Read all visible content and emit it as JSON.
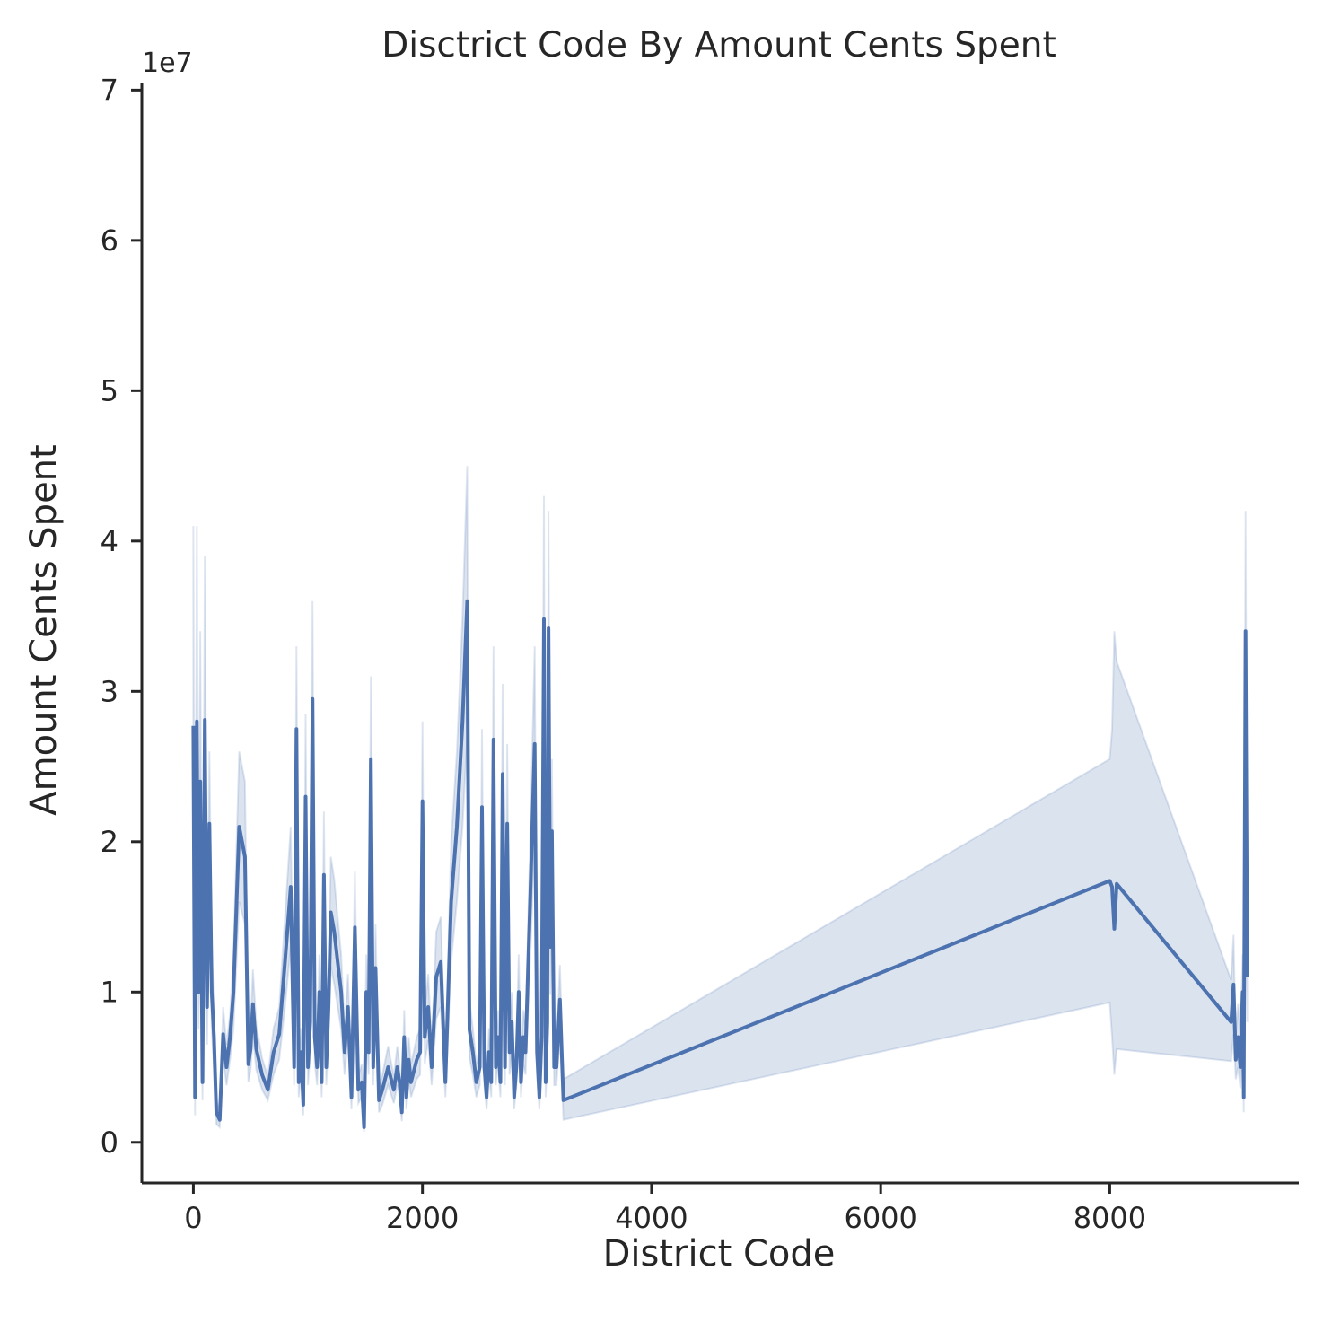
{
  "chart_data": {
    "type": "line",
    "title": "Disctrict Code By Amount Cents Spent",
    "xlabel": "District Code",
    "ylabel": "Amount Cents Spent",
    "y_offset_label": "1e7",
    "xlim": [
      -450,
      9650
    ],
    "ylim": [
      -0.27,
      7.05
    ],
    "xticks": [
      0,
      2000,
      4000,
      6000,
      8000
    ],
    "xtick_labels": [
      "0",
      "2000",
      "4000",
      "6000",
      "8000"
    ],
    "yticks": [
      0,
      1,
      2,
      3,
      4,
      5,
      6,
      7
    ],
    "ytick_labels": [
      "0",
      "1",
      "2",
      "3",
      "4",
      "5",
      "6",
      "7"
    ],
    "grid": false,
    "colors": {
      "line": "#4c72b0",
      "band": "#4c72b0",
      "axis": "#262626"
    },
    "series": [
      {
        "x": [
          0,
          15,
          30,
          45,
          60,
          80,
          100,
          120,
          140,
          160,
          180,
          200,
          230,
          260,
          290,
          320,
          350,
          400,
          450,
          480,
          500,
          520,
          550,
          600,
          650,
          700,
          750,
          800,
          850,
          880,
          900,
          920,
          940,
          960,
          980,
          1000,
          1020,
          1040,
          1060,
          1080,
          1100,
          1120,
          1140,
          1160,
          1180,
          1200,
          1230,
          1260,
          1290,
          1320,
          1350,
          1380,
          1410,
          1440,
          1470,
          1490,
          1510,
          1530,
          1550,
          1570,
          1590,
          1620,
          1650,
          1700,
          1750,
          1780,
          1800,
          1820,
          1840,
          1860,
          1880,
          1900,
          1950,
          1980,
          2000,
          2020,
          2050,
          2080,
          2120,
          2160,
          2200,
          2250,
          2300,
          2350,
          2390,
          2410,
          2440,
          2470,
          2500,
          2520,
          2540,
          2560,
          2580,
          2600,
          2620,
          2640,
          2660,
          2680,
          2700,
          2720,
          2740,
          2760,
          2780,
          2800,
          2820,
          2840,
          2860,
          2880,
          2900,
          2940,
          2980,
          3000,
          3020,
          3040,
          3060,
          3075,
          3090,
          3100,
          3115,
          3130,
          3150,
          3170,
          3200,
          3230,
          8000,
          8020,
          8040,
          8060,
          9060,
          9080,
          9100,
          9120,
          9140,
          9160,
          9170,
          9185,
          9200
        ],
        "y": [
          2.77,
          0.3,
          2.8,
          1.0,
          2.4,
          0.4,
          2.81,
          0.9,
          2.12,
          1.0,
          0.7,
          0.2,
          0.15,
          0.72,
          0.5,
          0.7,
          1.0,
          2.1,
          1.9,
          0.52,
          0.62,
          0.92,
          0.62,
          0.45,
          0.35,
          0.6,
          0.72,
          1.2,
          1.7,
          0.5,
          2.75,
          0.4,
          0.6,
          0.25,
          2.3,
          0.5,
          0.8,
          2.95,
          0.7,
          0.5,
          1.0,
          0.4,
          1.78,
          0.5,
          0.9,
          1.53,
          1.4,
          1.2,
          1.0,
          0.6,
          0.9,
          0.3,
          1.43,
          0.35,
          0.4,
          0.1,
          1.0,
          0.6,
          2.55,
          0.5,
          1.16,
          0.28,
          0.35,
          0.5,
          0.35,
          0.5,
          0.4,
          0.2,
          0.7,
          0.3,
          0.55,
          0.4,
          0.55,
          0.6,
          2.27,
          0.7,
          0.9,
          0.5,
          1.1,
          1.2,
          0.4,
          1.6,
          2.1,
          2.8,
          3.6,
          0.75,
          0.6,
          0.4,
          0.5,
          2.23,
          0.5,
          0.3,
          0.6,
          0.4,
          2.68,
          0.5,
          0.7,
          0.4,
          2.45,
          0.5,
          2.12,
          0.6,
          0.8,
          0.3,
          0.5,
          1.0,
          0.4,
          0.7,
          0.6,
          1.6,
          2.65,
          0.6,
          0.3,
          0.7,
          3.48,
          0.4,
          0.8,
          3.42,
          1.3,
          2.07,
          0.5,
          0.5,
          0.95,
          0.28,
          1.74,
          1.7,
          1.42,
          1.72,
          0.8,
          1.05,
          0.55,
          0.7,
          0.5,
          1.0,
          0.3,
          3.4,
          1.1
        ],
        "lower": [
          2.3,
          0.18,
          2.2,
          0.75,
          1.85,
          0.28,
          2.2,
          0.65,
          1.65,
          0.75,
          0.5,
          0.12,
          0.1,
          0.55,
          0.38,
          0.55,
          0.75,
          1.6,
          1.45,
          0.4,
          0.48,
          0.7,
          0.48,
          0.35,
          0.28,
          0.45,
          0.55,
          0.9,
          1.3,
          0.38,
          2.1,
          0.3,
          0.45,
          0.18,
          1.75,
          0.38,
          0.6,
          2.25,
          0.52,
          0.38,
          0.75,
          0.3,
          1.35,
          0.38,
          0.68,
          1.17,
          1.05,
          0.9,
          0.75,
          0.45,
          0.68,
          0.22,
          1.08,
          0.26,
          0.3,
          0.07,
          0.75,
          0.45,
          1.95,
          0.38,
          0.88,
          0.2,
          0.25,
          0.38,
          0.26,
          0.38,
          0.3,
          0.14,
          0.52,
          0.22,
          0.42,
          0.3,
          0.42,
          0.45,
          1.72,
          0.52,
          0.68,
          0.38,
          0.82,
          0.9,
          0.3,
          1.2,
          1.6,
          2.1,
          2.7,
          0.56,
          0.45,
          0.3,
          0.38,
          1.7,
          0.38,
          0.22,
          0.45,
          0.3,
          2.05,
          0.38,
          0.52,
          0.3,
          1.85,
          0.38,
          1.6,
          0.45,
          0.6,
          0.22,
          0.38,
          0.75,
          0.3,
          0.52,
          0.45,
          1.2,
          2.0,
          0.45,
          0.22,
          0.52,
          2.65,
          0.3,
          0.6,
          2.6,
          0.98,
          1.57,
          0.38,
          0.38,
          0.72,
          0.15,
          0.93,
          0.7,
          0.45,
          0.62,
          0.54,
          0.72,
          0.42,
          0.5,
          0.36,
          0.75,
          0.2,
          2.6,
          0.8
        ],
        "upper": [
          4.1,
          0.5,
          4.1,
          1.3,
          3.4,
          0.55,
          3.9,
          1.2,
          2.6,
          1.3,
          0.9,
          0.28,
          0.22,
          0.9,
          0.65,
          0.85,
          1.25,
          2.6,
          2.4,
          0.66,
          0.78,
          1.15,
          0.78,
          0.56,
          0.44,
          0.76,
          0.9,
          1.5,
          2.1,
          0.64,
          3.3,
          0.52,
          0.76,
          0.32,
          2.85,
          0.64,
          1.0,
          3.6,
          0.88,
          0.64,
          1.25,
          0.52,
          2.2,
          0.64,
          1.12,
          1.9,
          1.75,
          1.5,
          1.25,
          0.76,
          1.12,
          0.4,
          1.8,
          0.44,
          0.52,
          0.13,
          1.25,
          0.76,
          3.1,
          0.64,
          1.45,
          0.36,
          0.45,
          0.64,
          0.44,
          0.64,
          0.52,
          0.26,
          0.88,
          0.4,
          0.7,
          0.52,
          0.7,
          0.76,
          2.8,
          0.88,
          1.12,
          0.64,
          1.4,
          1.5,
          0.52,
          2.0,
          2.6,
          3.5,
          4.5,
          0.95,
          0.76,
          0.52,
          0.64,
          2.75,
          0.64,
          0.4,
          0.76,
          0.52,
          3.3,
          0.64,
          0.88,
          0.52,
          3.05,
          0.64,
          2.65,
          0.76,
          1.0,
          0.4,
          0.64,
          1.25,
          0.52,
          0.88,
          0.76,
          2.0,
          3.3,
          0.76,
          0.4,
          0.88,
          4.3,
          0.52,
          1.0,
          4.2,
          1.62,
          2.55,
          0.64,
          0.64,
          1.18,
          0.42,
          2.55,
          2.75,
          3.4,
          3.2,
          1.08,
          1.38,
          0.7,
          0.92,
          0.7,
          1.25,
          0.42,
          4.2,
          1.4
        ]
      }
    ]
  }
}
